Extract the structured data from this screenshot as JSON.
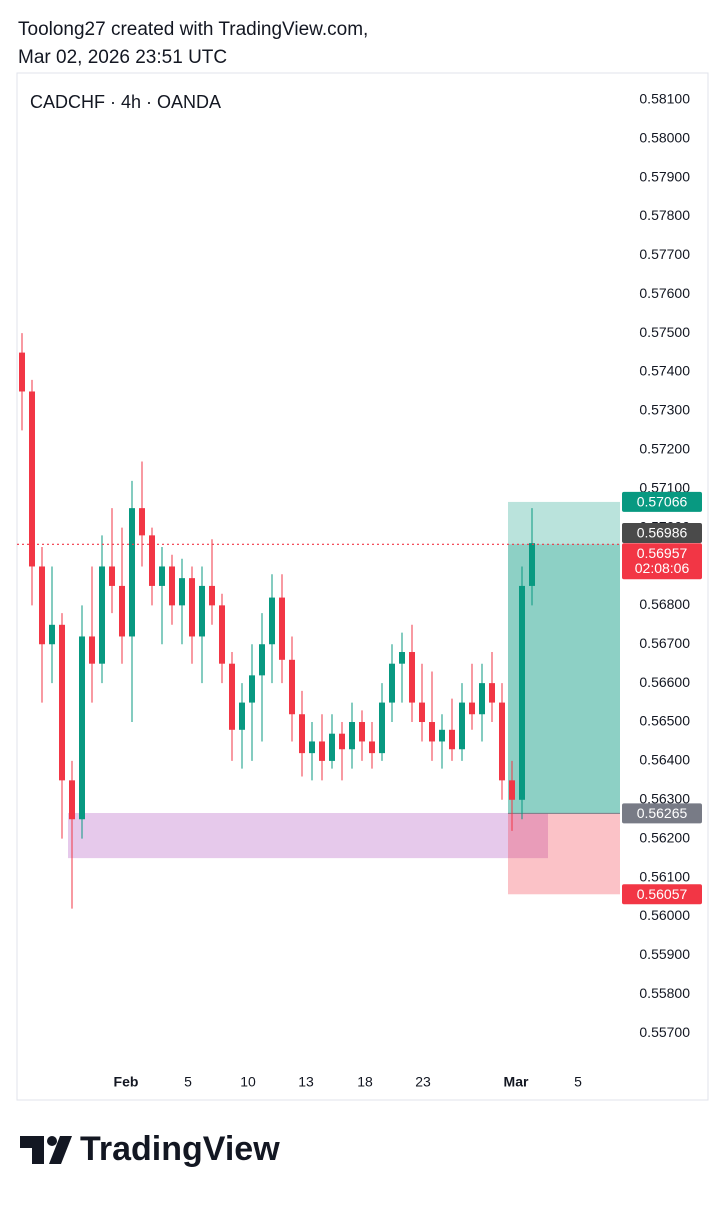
{
  "header": {
    "line1": "Toolong27 created with TradingView.com,",
    "line2": "Mar 02, 2026 23:51 UTC"
  },
  "chart_data": {
    "type": "candlestick",
    "title": "CADCHF · 4h · OANDA",
    "up_color": "#089981",
    "down_color": "#f23645",
    "open": [
      0.5745,
      0.5735,
      0.569,
      0.567,
      0.5675,
      0.5635,
      0.5625,
      0.5672,
      0.5665,
      0.569,
      0.5685,
      0.5672,
      0.5705,
      0.5698,
      0.5685,
      0.569,
      0.568,
      0.5687,
      0.5672,
      0.5685,
      0.568,
      0.5665,
      0.5648,
      0.5655,
      0.5662,
      0.567,
      0.5682,
      0.5666,
      0.5652,
      0.5642,
      0.5645,
      0.564,
      0.5647,
      0.5643,
      0.565,
      0.5645,
      0.5642,
      0.5655,
      0.5665,
      0.5668,
      0.5655,
      0.565,
      0.5645,
      0.5648,
      0.5643,
      0.5655,
      0.5652,
      0.566,
      0.5655,
      0.5635,
      0.563,
      0.5685
    ],
    "high": [
      0.575,
      0.5738,
      0.5695,
      0.569,
      0.5678,
      0.564,
      0.568,
      0.569,
      0.5698,
      0.5705,
      0.57,
      0.5712,
      0.5717,
      0.57,
      0.5695,
      0.5693,
      0.5692,
      0.569,
      0.569,
      0.5697,
      0.5683,
      0.5668,
      0.566,
      0.567,
      0.5678,
      0.5688,
      0.5688,
      0.5672,
      0.5658,
      0.565,
      0.5652,
      0.5652,
      0.565,
      0.5655,
      0.5653,
      0.565,
      0.566,
      0.567,
      0.5673,
      0.5675,
      0.5665,
      0.5663,
      0.5652,
      0.5656,
      0.566,
      0.5665,
      0.5665,
      0.5668,
      0.566,
      0.564,
      0.569,
      0.5705
    ],
    "low": [
      0.5725,
      0.568,
      0.5655,
      0.566,
      0.562,
      0.5602,
      0.562,
      0.5655,
      0.566,
      0.5678,
      0.5665,
      0.565,
      0.569,
      0.568,
      0.567,
      0.5675,
      0.567,
      0.5665,
      0.566,
      0.5675,
      0.566,
      0.564,
      0.5638,
      0.564,
      0.5645,
      0.566,
      0.566,
      0.5645,
      0.5636,
      0.5635,
      0.5635,
      0.5638,
      0.5635,
      0.5638,
      0.564,
      0.5638,
      0.564,
      0.565,
      0.5655,
      0.565,
      0.5645,
      0.564,
      0.5638,
      0.564,
      0.564,
      0.5648,
      0.5645,
      0.565,
      0.563,
      0.5622,
      0.5625,
      0.568
    ],
    "close": [
      0.5735,
      0.569,
      0.567,
      0.5675,
      0.5635,
      0.5625,
      0.5672,
      0.5665,
      0.569,
      0.5685,
      0.5672,
      0.5705,
      0.5698,
      0.5685,
      0.569,
      0.568,
      0.5687,
      0.5672,
      0.5685,
      0.568,
      0.5665,
      0.5648,
      0.5655,
      0.5662,
      0.567,
      0.5682,
      0.5666,
      0.5652,
      0.5642,
      0.5645,
      0.564,
      0.5647,
      0.5643,
      0.565,
      0.5645,
      0.5642,
      0.5655,
      0.5665,
      0.5668,
      0.5655,
      0.565,
      0.5645,
      0.5648,
      0.5643,
      0.5655,
      0.5652,
      0.566,
      0.5655,
      0.5635,
      0.563,
      0.5685,
      0.5696
    ],
    "xlim": [
      0,
      60.3
    ],
    "xticks": [
      {
        "value": 10.9,
        "label": "Feb"
      },
      {
        "value": 17.1,
        "label": "5"
      },
      {
        "value": 23.1,
        "label": "10"
      },
      {
        "value": 28.9,
        "label": "13"
      },
      {
        "value": 34.8,
        "label": "18"
      },
      {
        "value": 40.6,
        "label": "23"
      },
      {
        "value": 49.9,
        "label": "Mar"
      },
      {
        "value": 56.1,
        "label": "5"
      }
    ],
    "ylim": [
      0.55618,
      0.58169
    ],
    "yticks": [
      {
        "value": 0.557,
        "label": "0.55700"
      },
      {
        "value": 0.558,
        "label": "0.55800"
      },
      {
        "value": 0.559,
        "label": "0.55900"
      },
      {
        "value": 0.56,
        "label": "0.56000"
      },
      {
        "value": 0.561,
        "label": "0.56100"
      },
      {
        "value": 0.562,
        "label": "0.56200"
      },
      {
        "value": 0.563,
        "label": "0.56300"
      },
      {
        "value": 0.564,
        "label": "0.56400"
      },
      {
        "value": 0.565,
        "label": "0.56500"
      },
      {
        "value": 0.566,
        "label": "0.56600"
      },
      {
        "value": 0.567,
        "label": "0.56700"
      },
      {
        "value": 0.568,
        "label": "0.56800"
      },
      {
        "value": 0.569,
        "label": "0.56900"
      },
      {
        "value": 0.57,
        "label": "0.57000"
      },
      {
        "value": 0.571,
        "label": "0.57100"
      },
      {
        "value": 0.572,
        "label": "0.57200"
      },
      {
        "value": 0.573,
        "label": "0.57300"
      },
      {
        "value": 0.574,
        "label": "0.57400"
      },
      {
        "value": 0.575,
        "label": "0.57500"
      },
      {
        "value": 0.576,
        "label": "0.57600"
      },
      {
        "value": 0.577,
        "label": "0.57700"
      },
      {
        "value": 0.578,
        "label": "0.57800"
      },
      {
        "value": 0.579,
        "label": "0.57900"
      },
      {
        "value": 0.58,
        "label": "0.58000"
      },
      {
        "value": 0.581,
        "label": "0.58100"
      }
    ],
    "zone": {
      "low": 0.5615,
      "high": 0.56266,
      "x_range": [
        5.1,
        53.1
      ],
      "color": "rgba(156,39,176,0.25)"
    },
    "position": {
      "target": 0.57066,
      "entry": 0.56265,
      "stop": 0.56057,
      "x_range": [
        49.1,
        60.3
      ]
    },
    "price_labels": [
      {
        "value": 0.56986,
        "color": "#4a4a4a"
      },
      {
        "value": 0.56957,
        "color": "#f23645",
        "countdown": "02:08:06"
      }
    ]
  },
  "footer": {
    "brand": "TradingView"
  }
}
